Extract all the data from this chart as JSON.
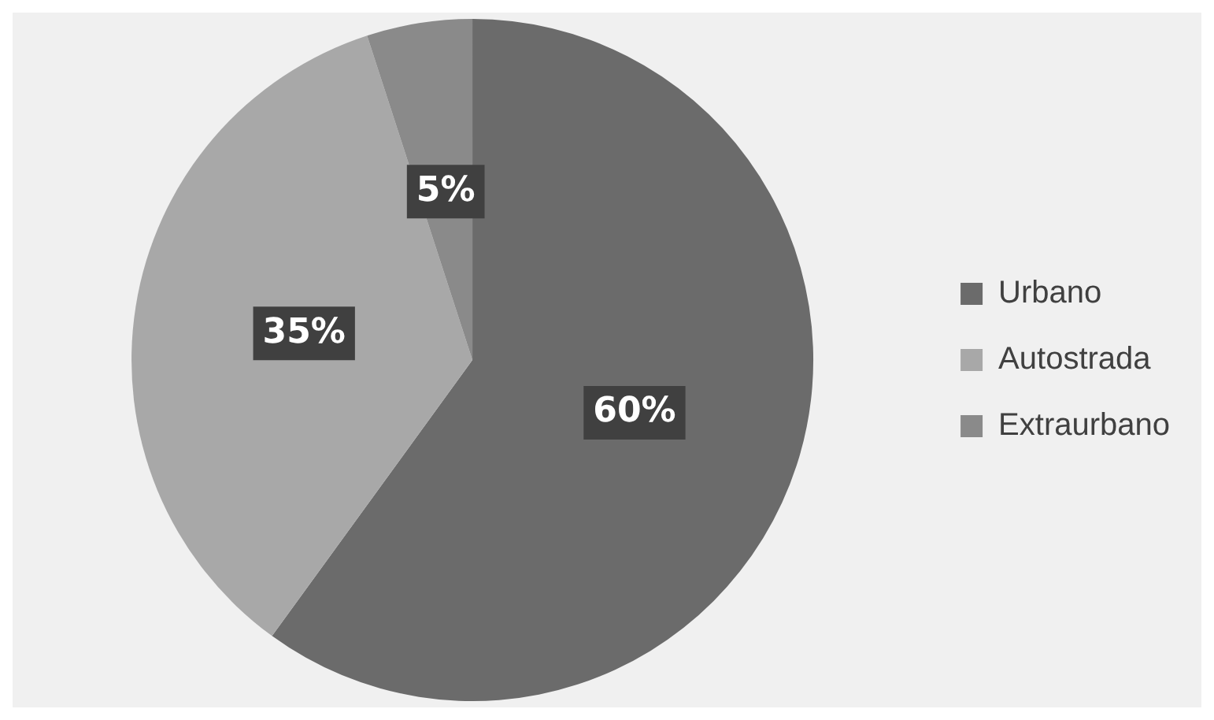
{
  "chart_data": {
    "type": "pie",
    "categories": [
      "Urbano",
      "Autostrada",
      "Extraurbano"
    ],
    "values": [
      60,
      35,
      5
    ],
    "colors": [
      "#6b6b6b",
      "#a8a8a8",
      "#8a8a8a"
    ],
    "value_labels": [
      "60%",
      "35%",
      "5%"
    ],
    "legend": "right"
  }
}
